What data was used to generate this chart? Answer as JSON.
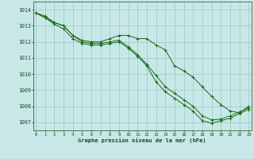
{
  "line1": [
    1013.8,
    1013.6,
    1013.2,
    1013.0,
    1012.4,
    1012.1,
    1012.0,
    1012.0,
    1012.2,
    1012.4,
    1012.4,
    1012.2,
    1012.2,
    1011.8,
    1011.5,
    1010.5,
    1010.2,
    1009.8,
    1009.2,
    1008.6,
    1008.1,
    1007.7,
    1007.6,
    1008.0
  ],
  "line2": [
    1013.8,
    1013.5,
    1013.2,
    1013.0,
    1012.4,
    1012.0,
    1011.9,
    1011.9,
    1012.0,
    1012.1,
    1011.7,
    1011.2,
    1010.6,
    1009.9,
    1009.2,
    1008.8,
    1008.4,
    1008.0,
    1007.4,
    1007.15,
    1007.2,
    1007.4,
    1007.65,
    1007.9
  ],
  "line3": [
    1013.8,
    1013.5,
    1013.1,
    1012.8,
    1012.2,
    1011.9,
    1011.8,
    1011.8,
    1011.9,
    1012.0,
    1011.6,
    1011.1,
    1010.5,
    1009.5,
    1008.9,
    1008.5,
    1008.1,
    1007.7,
    1007.1,
    1006.95,
    1007.1,
    1007.25,
    1007.55,
    1007.8
  ],
  "x": [
    0,
    1,
    2,
    3,
    4,
    5,
    6,
    7,
    8,
    9,
    10,
    11,
    12,
    13,
    14,
    15,
    16,
    17,
    18,
    19,
    20,
    21,
    22,
    23
  ],
  "ylim": [
    1006.5,
    1014.5
  ],
  "yticks": [
    1007,
    1008,
    1009,
    1010,
    1011,
    1012,
    1013,
    1014
  ],
  "line_color": "#1a6b1a",
  "bg_color": "#c8e8e8",
  "grid_color": "#9ec4c4",
  "xlabel": "Graphe pression niveau de la mer (hPa)",
  "tick_color": "#1a4a1a",
  "label_color": "#1a4a1a"
}
